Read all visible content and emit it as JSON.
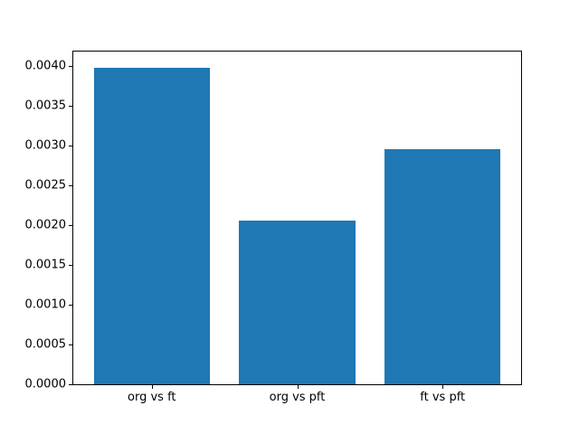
{
  "chart_data": {
    "type": "bar",
    "categories": [
      "org vs ft",
      "org vs pft",
      "ft vs pft"
    ],
    "values": [
      0.00398,
      0.00206,
      0.00295
    ],
    "title": "",
    "xlabel": "",
    "ylabel": "",
    "ylim": [
      0,
      0.00418
    ],
    "xlim": [
      -0.54,
      2.54
    ],
    "yticks": [
      0.0,
      0.0005,
      0.001,
      0.0015,
      0.002,
      0.0025,
      0.003,
      0.0035,
      0.004
    ],
    "ytick_labels": [
      "0.0000",
      "0.0005",
      "0.0010",
      "0.0015",
      "0.0020",
      "0.0025",
      "0.0030",
      "0.0035",
      "0.0040"
    ],
    "bar_width_fraction": 0.8,
    "bar_color": "#1f77b4",
    "frame_color": "#000000",
    "background_color": "#ffffff",
    "grid": false,
    "legend": null
  }
}
